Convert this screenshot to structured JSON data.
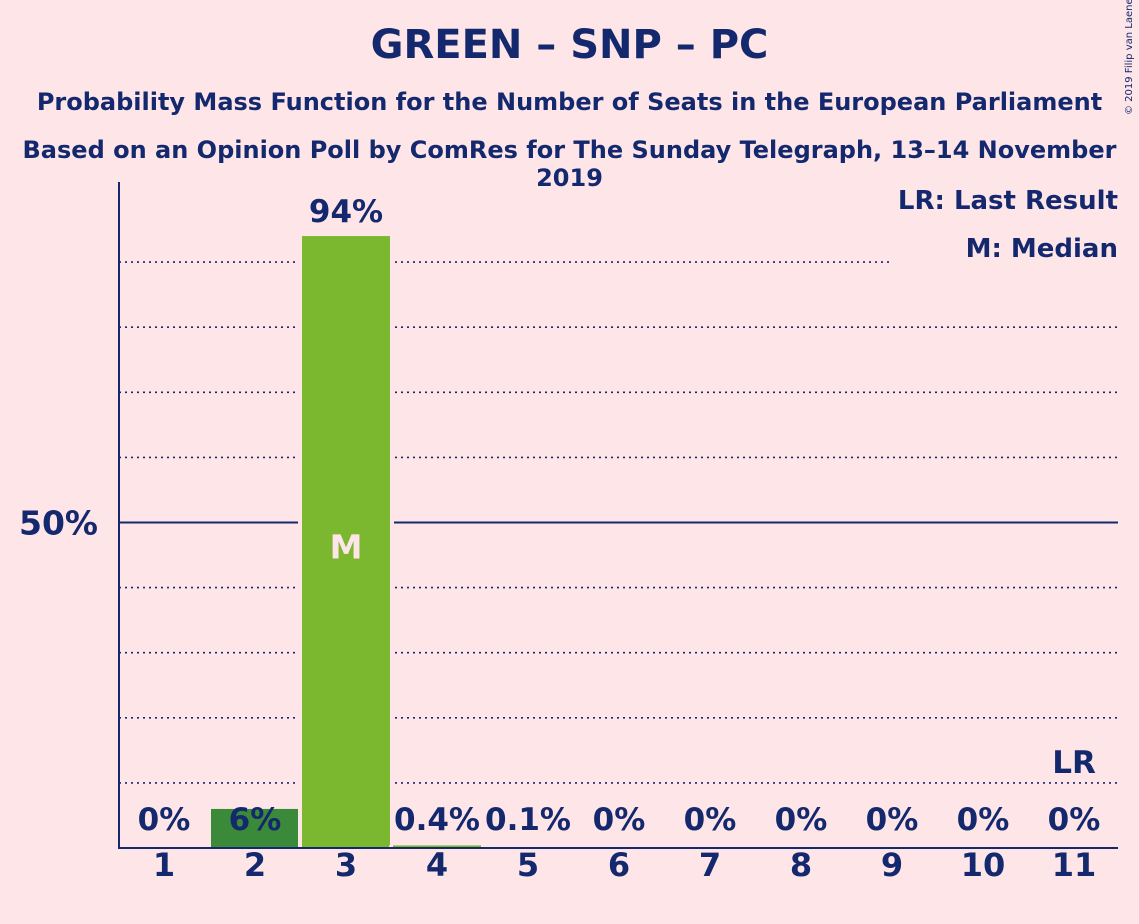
{
  "header": {
    "title": "GREEN – SNP – PC",
    "subtitle1": "Probability Mass Function for the Number of Seats in the European Parliament",
    "subtitle2": "Based on an Opinion Poll by ComRes for The Sunday Telegraph, 13–14 November 2019",
    "copyright": "© 2019 Filip van Laenen"
  },
  "chart_data": {
    "type": "bar",
    "categories": [
      "1",
      "2",
      "3",
      "4",
      "5",
      "6",
      "7",
      "8",
      "9",
      "10",
      "11"
    ],
    "values": [
      0,
      6,
      94,
      0.4,
      0.1,
      0,
      0,
      0,
      0,
      0,
      0
    ],
    "data_labels": [
      "0%",
      "6%",
      "94%",
      "0.4%",
      "0.1%",
      "0%",
      "0%",
      "0%",
      "0%",
      "0%",
      "0%"
    ],
    "bar_colors": [
      "#3a8a3a",
      "#3a8a3a",
      "#7cb82f",
      "#7cb82f",
      "#7cb82f",
      "#7cb82f",
      "#7cb82f",
      "#7cb82f",
      "#7cb82f",
      "#7cb82f",
      "#7cb82f"
    ],
    "ylim": [
      0,
      100
    ],
    "ytick_label": "50%",
    "ytick_value": 50,
    "grid": "dotted every 10%",
    "median_category": "3",
    "median_label": "M",
    "last_result_category": "11",
    "last_result_label": "LR",
    "legend": [
      "LR: Last Result",
      "M: Median"
    ],
    "legend_position": "top-right",
    "colors": {
      "background": "#fde5e8",
      "text": "#14286e",
      "axis": "#14286e"
    }
  }
}
